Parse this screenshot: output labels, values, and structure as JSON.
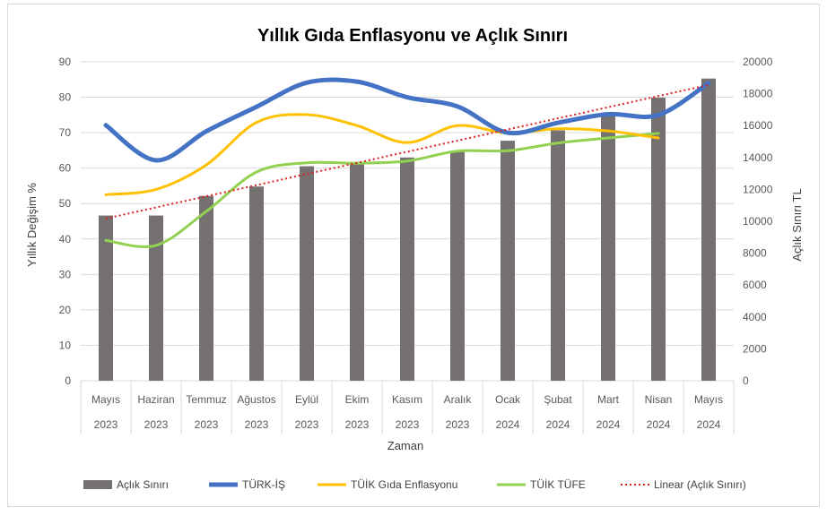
{
  "chart_data": {
    "type": "bar",
    "title": "Yıllık Gıda Enflasyonu ve Açlık Sınırı",
    "xlabel": "Zaman",
    "ylabel": "Yıllık Değişim %",
    "y2label": "Açlık Sınırı TL",
    "ylim": [
      0,
      90
    ],
    "y2lim": [
      0,
      20000
    ],
    "yticks": [
      "0",
      "10",
      "20",
      "30",
      "40",
      "50",
      "60",
      "70",
      "80",
      "90"
    ],
    "y2ticks": [
      "0",
      "2000",
      "4000",
      "6000",
      "8000",
      "10000",
      "12000",
      "14000",
      "16000",
      "18000",
      "20000"
    ],
    "categories": [
      {
        "month": "Mayıs",
        "year": "2023"
      },
      {
        "month": "Haziran",
        "year": "2023"
      },
      {
        "month": "Temmuz",
        "year": "2023"
      },
      {
        "month": "Ağustos",
        "year": "2023"
      },
      {
        "month": "Eylül",
        "year": "2023"
      },
      {
        "month": "Ekim",
        "year": "2023"
      },
      {
        "month": "Kasım",
        "year": "2023"
      },
      {
        "month": "Aralık",
        "year": "2023"
      },
      {
        "month": "Ocak",
        "year": "2024"
      },
      {
        "month": "Şubat",
        "year": "2024"
      },
      {
        "month": "Mart",
        "year": "2024"
      },
      {
        "month": "Nisan",
        "year": "2024"
      },
      {
        "month": "Mayıs",
        "year": "2024"
      }
    ],
    "bar_series": {
      "name": "Açlık Sınırı",
      "color": "#767171",
      "axis": "right",
      "values": [
        10360,
        10360,
        11590,
        12180,
        13450,
        13700,
        14000,
        14400,
        15050,
        15700,
        16800,
        17750,
        18950
      ]
    },
    "line_series": [
      {
        "name": "TÜRK-İŞ",
        "color": "#4472c4",
        "axis": "left",
        "style": "thick",
        "values": [
          72.1,
          62.2,
          70.4,
          77.3,
          84.1,
          84.4,
          80.0,
          77.4,
          70.0,
          72.8,
          75.2,
          75.0,
          84.0
        ]
      },
      {
        "name": "TÜİK Gıda Enflasyonu",
        "color": "#ffc000",
        "axis": "left",
        "style": "normal",
        "values": [
          52.5,
          54.0,
          60.9,
          72.9,
          75.1,
          72.0,
          67.2,
          72.0,
          69.9,
          71.1,
          70.5,
          68.5,
          null
        ]
      },
      {
        "name": "TÜİK TÜFE",
        "color": "#92d050",
        "axis": "left",
        "style": "normal",
        "values": [
          39.6,
          38.2,
          47.8,
          58.9,
          61.5,
          61.4,
          62.0,
          64.8,
          64.9,
          67.1,
          68.5,
          69.8,
          null
        ]
      }
    ],
    "trendline": {
      "name": "Linear (Açlık Sınırı)",
      "color": "#e02020",
      "axis": "right",
      "style": "dotted",
      "start": 10170,
      "end": 18550
    },
    "legend_position": "bottom",
    "grid": true
  }
}
